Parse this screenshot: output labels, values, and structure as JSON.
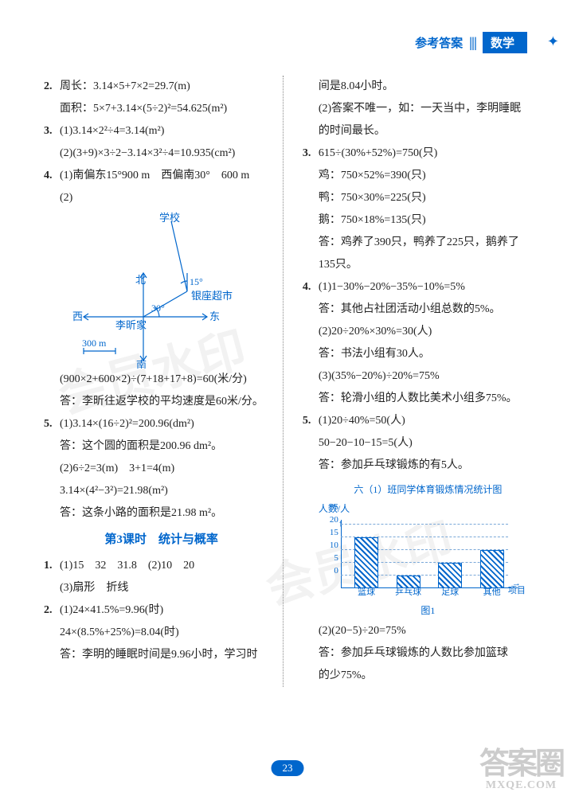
{
  "header": {
    "answer_label": "参考答案",
    "bars": "|||",
    "subject": "数学"
  },
  "left": {
    "q2": {
      "num": "2.",
      "l1": "周长：3.14×5+7×2=29.7(m)",
      "l2": "面积：5×7+3.14×(5÷2)²=54.625(m²)"
    },
    "q3": {
      "num": "3.",
      "l1": "(1)3.14×2²÷4=3.14(m²)",
      "l2": "(2)(3+9)×3÷2−3.14×3²÷4=10.935(cm²)"
    },
    "q4": {
      "num": "4.",
      "l1": "(1)南偏东15°900 m　西偏南30°　600 m",
      "l2": "(2)",
      "diagram": {
        "labels": {
          "school": "学校",
          "north": "北",
          "south": "南",
          "east": "东",
          "west": "西",
          "market": "银座超市",
          "home": "李昕家",
          "scale": "300 m",
          "a15": "15°",
          "a30": "30°"
        },
        "colors": {
          "line": "#0066cc"
        }
      },
      "l3": "(900×2+600×2)÷(7+18+17+8)=60(米/分)",
      "l4": "答：李昕往返学校的平均速度是60米/分。"
    },
    "q5": {
      "num": "5.",
      "l1": "(1)3.14×(16÷2)²=200.96(dm²)",
      "l2": "答：这个圆的面积是200.96 dm²。",
      "l3": "(2)6÷2=3(m)　3+1=4(m)",
      "l4": "3.14×(4²−3²)=21.98(m²)",
      "l5": "答：这条小路的面积是21.98 m²。"
    },
    "section": "第3课时　统计与概率",
    "s1": {
      "num": "1.",
      "l1": "(1)15　32　31.8　(2)10　20",
      "l2": "(3)扇形　折线"
    },
    "s2": {
      "num": "2.",
      "l1": "(1)24×41.5%=9.96(时)",
      "l2": "24×(8.5%+25%)=8.04(时)",
      "l3": "答：李明的睡眠时间是9.96小时，学习时"
    }
  },
  "right": {
    "cont": {
      "l1": "间是8.04小时。",
      "l2": "(2)答案不唯一，如：一天当中，李明睡眠",
      "l3": "的时间最长。"
    },
    "q3": {
      "num": "3.",
      "l1": "615÷(30%+52%)=750(只)",
      "l2": "鸡：750×52%=390(只)",
      "l3": "鸭：750×30%=225(只)",
      "l4": "鹅：750×18%=135(只)",
      "l5": "答：鸡养了390只，鸭养了225只，鹅养了",
      "l6": "135只。"
    },
    "q4": {
      "num": "4.",
      "l1": "(1)1−30%−20%−35%−10%=5%",
      "l2": "答：其他占社团活动小组总数的5%。",
      "l3": "(2)20÷20%×30%=30(人)",
      "l4": "答：书法小组有30人。",
      "l5": "(3)(35%−20%)÷20%=75%",
      "l6": "答：轮滑小组的人数比美术小组多75%。"
    },
    "q5": {
      "num": "5.",
      "l1": "(1)20÷40%=50(人)",
      "l2": "50−20−10−15=5(人)",
      "l3": "答：参加乒乓球锻炼的有5人。",
      "chart": {
        "title": "六（1）班同学体育锻炼情况统计图",
        "ylabel": "人数/人",
        "xlabel_cap": "项目",
        "caption": "图1",
        "ymax": 25,
        "ytick_step": 5,
        "yticks": [
          0,
          5,
          10,
          15,
          20,
          25
        ],
        "categories": [
          "篮球",
          "乒乓球",
          "足球",
          "其他"
        ],
        "values": [
          20,
          5,
          10,
          15
        ],
        "bar_color": "#0066cc",
        "axis_color": "#0066cc",
        "bg": "#ffffff"
      },
      "l4": "(2)(20−5)÷20=75%",
      "l5": "答：参加乒乓球锻炼的人数比参加篮球",
      "l6": "的少75%。"
    }
  },
  "footer": {
    "page": "23"
  },
  "logo": {
    "text": "答案圈",
    "url": "MXQE.COM"
  },
  "watermark": "会员水印"
}
